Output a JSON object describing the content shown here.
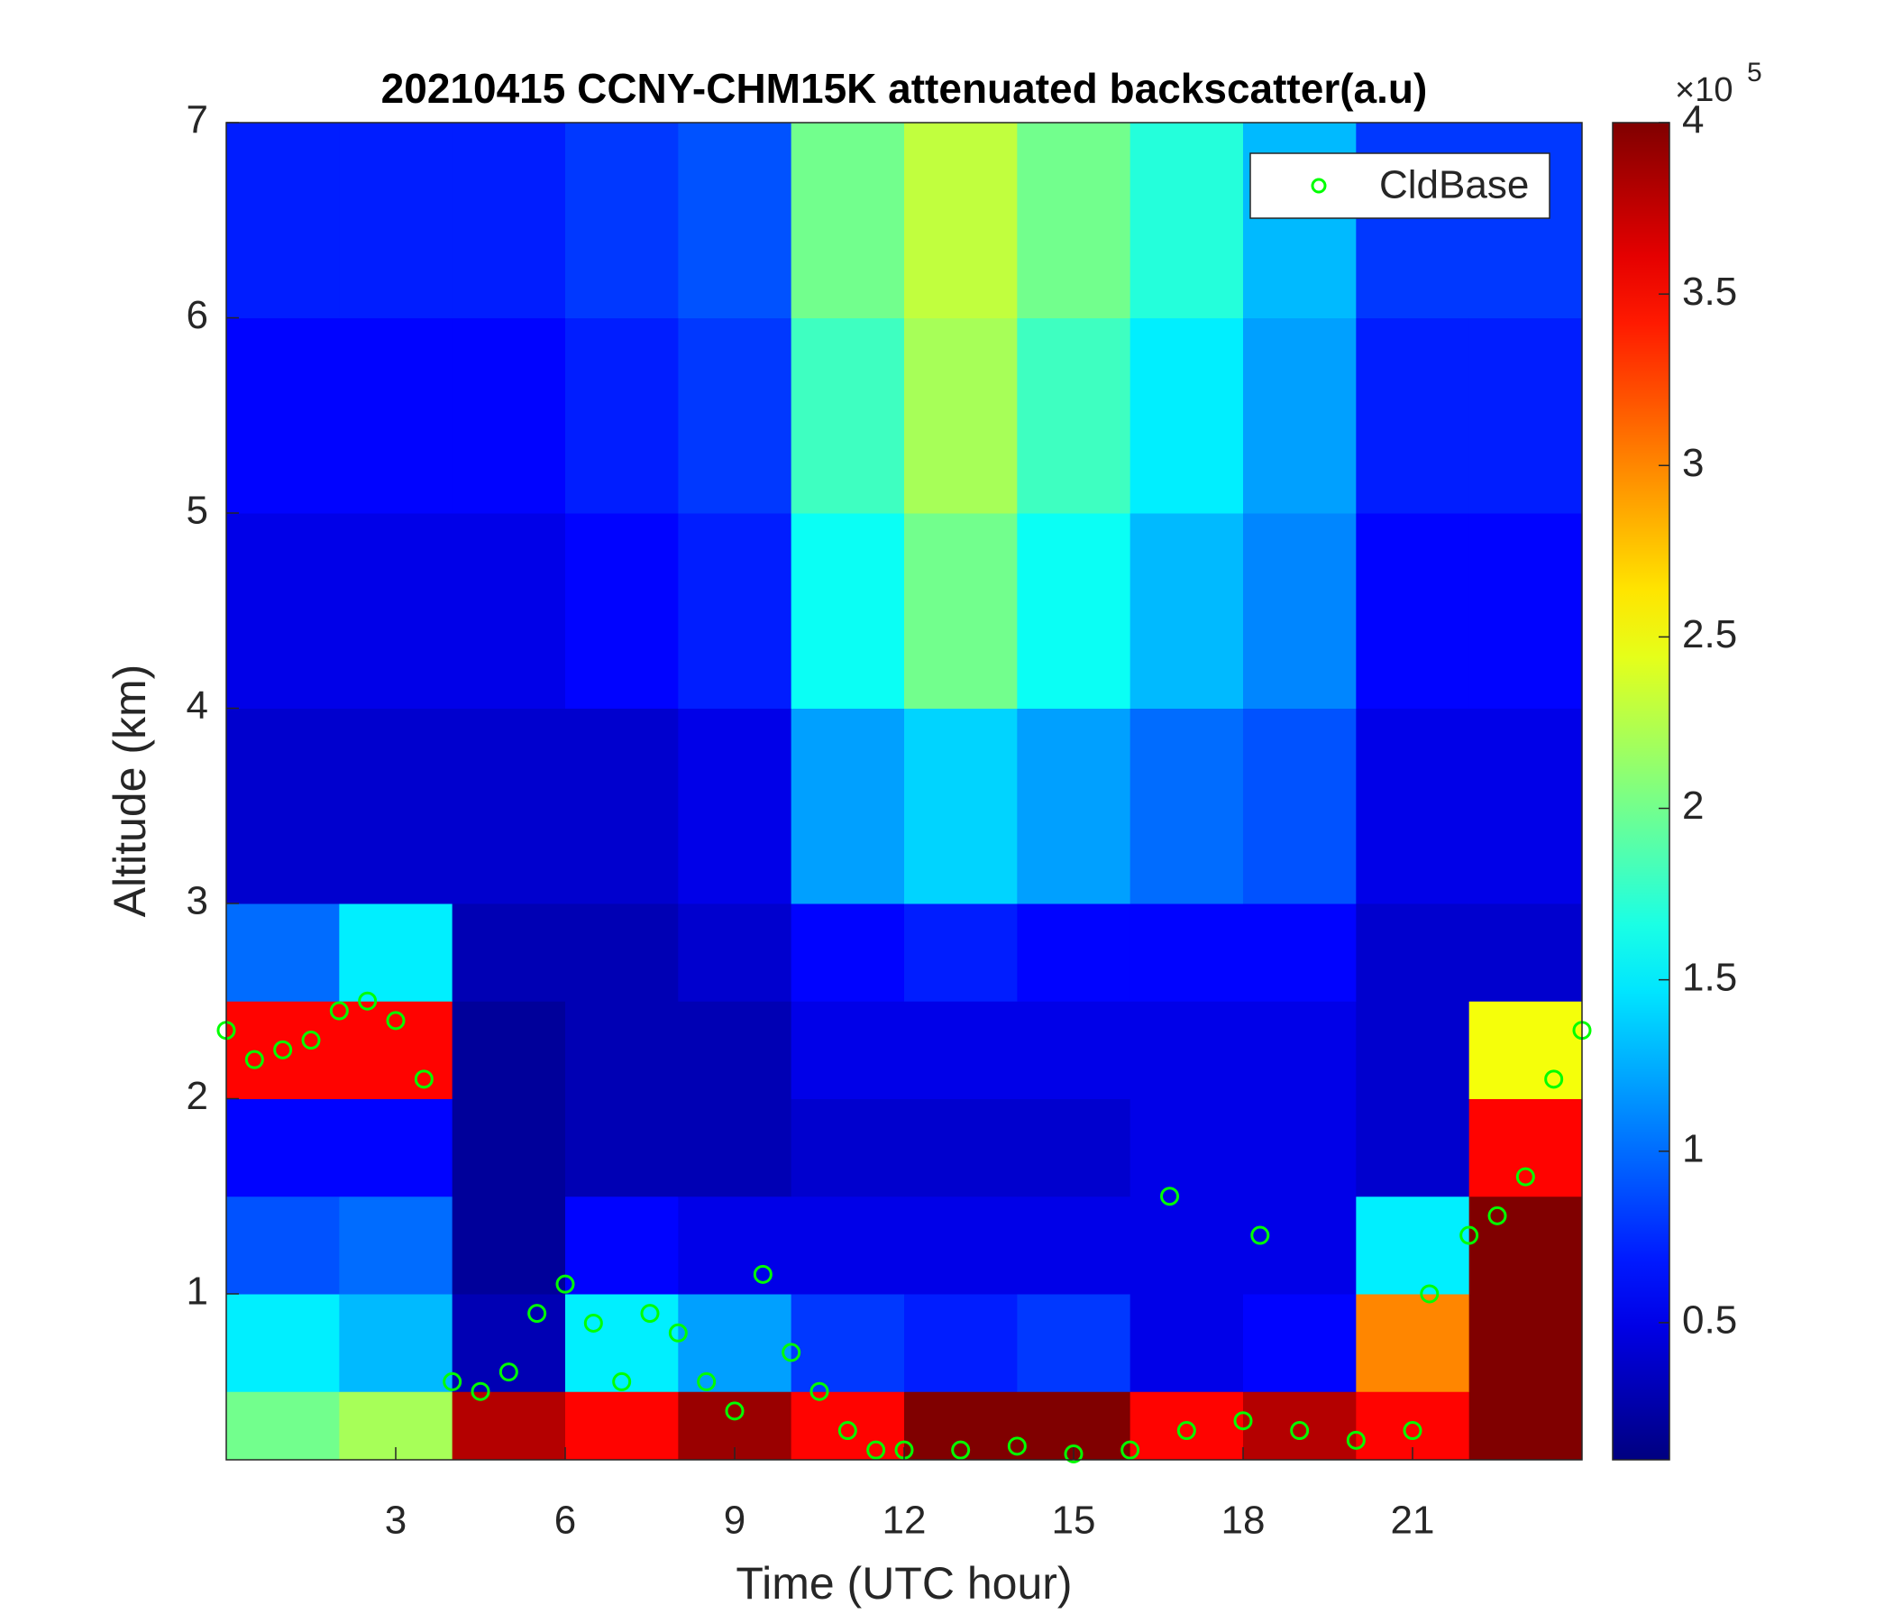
{
  "chart_data": {
    "type": "heatmap",
    "title": "20210415 CCNY-CHM15K attenuated backscatter(a.u)",
    "xlabel": "Time (UTC hour)",
    "ylabel": "Altitude (km)",
    "xlim": [
      0,
      24
    ],
    "xticks": [
      3,
      6,
      9,
      12,
      15,
      18,
      21
    ],
    "ylim": [
      0.15,
      7
    ],
    "yticks": [
      1,
      2,
      3,
      4,
      5,
      6,
      7
    ],
    "x_edges": [
      0,
      2,
      4,
      6,
      8,
      10,
      12,
      14,
      16,
      18,
      20,
      22,
      24
    ],
    "y_edges": [
      0.15,
      0.5,
      1,
      1.5,
      2,
      2.5,
      3,
      4,
      5,
      6,
      7
    ],
    "z": [
      [
        2.0,
        2.2,
        3.8,
        3.5,
        3.9,
        3.5,
        4,
        4,
        3.5,
        3.8,
        3.5,
        4
      ],
      [
        1.5,
        1.3,
        0.3,
        1.5,
        1.2,
        0.8,
        0.7,
        0.8,
        0.5,
        0.6,
        3,
        4
      ],
      [
        0.9,
        1.0,
        0.2,
        0.6,
        0.5,
        0.5,
        0.5,
        0.5,
        0.5,
        0.5,
        1.5,
        4
      ],
      [
        0.6,
        0.6,
        0.2,
        0.3,
        0.3,
        0.4,
        0.4,
        0.4,
        0.5,
        0.5,
        0.4,
        3.5
      ],
      [
        3.5,
        3.5,
        0.2,
        0.3,
        0.3,
        0.5,
        0.5,
        0.5,
        0.5,
        0.5,
        0.4,
        2.5
      ],
      [
        1.0,
        1.5,
        0.3,
        0.3,
        0.4,
        0.6,
        0.7,
        0.6,
        0.6,
        0.6,
        0.4,
        0.4
      ],
      [
        0.4,
        0.4,
        0.4,
        0.4,
        0.5,
        1.2,
        1.4,
        1.2,
        1.0,
        0.9,
        0.5,
        0.5
      ],
      [
        0.5,
        0.5,
        0.5,
        0.6,
        0.7,
        1.6,
        2.0,
        1.6,
        1.3,
        1.1,
        0.6,
        0.6
      ],
      [
        0.6,
        0.6,
        0.6,
        0.7,
        0.8,
        1.8,
        2.2,
        1.8,
        1.5,
        1.2,
        0.7,
        0.7
      ],
      [
        0.7,
        0.7,
        0.7,
        0.8,
        0.9,
        2.0,
        2.3,
        2.0,
        1.7,
        1.3,
        0.8,
        0.8
      ]
    ],
    "clim": [
      0.1,
      4
    ],
    "cticks": [
      0.5,
      1,
      1.5,
      2,
      2.5,
      3,
      3.5,
      4
    ],
    "colorbar_multiplier": "×10",
    "colorbar_exponent": "5",
    "legend": "northeast",
    "series": [
      {
        "name": "CldBase",
        "color": "#00ff00",
        "x": [
          0.0,
          0.5,
          1.0,
          1.5,
          2.0,
          2.5,
          3.0,
          3.5,
          4.0,
          4.5,
          5.0,
          5.5,
          6.0,
          6.5,
          7.0,
          7.5,
          8.0,
          8.5,
          9.0,
          9.5,
          10.0,
          10.5,
          11.0,
          11.5,
          12.0,
          13.0,
          14.0,
          15.0,
          16.0,
          16.7,
          17.0,
          18.0,
          18.3,
          19.0,
          20.0,
          21.0,
          21.3,
          22.0,
          22.5,
          23.0,
          23.5,
          24.0
        ],
        "values": [
          2.35,
          2.2,
          2.25,
          2.3,
          2.45,
          2.5,
          2.4,
          2.1,
          0.55,
          0.5,
          0.6,
          0.9,
          1.05,
          0.85,
          0.55,
          0.9,
          0.8,
          0.55,
          0.4,
          1.1,
          0.7,
          0.5,
          0.3,
          0.2,
          0.2,
          0.2,
          0.22,
          0.18,
          0.2,
          1.5,
          0.3,
          0.35,
          1.3,
          0.3,
          0.25,
          0.3,
          1.0,
          1.3,
          1.4,
          1.6,
          2.1,
          2.35
        ]
      }
    ]
  }
}
